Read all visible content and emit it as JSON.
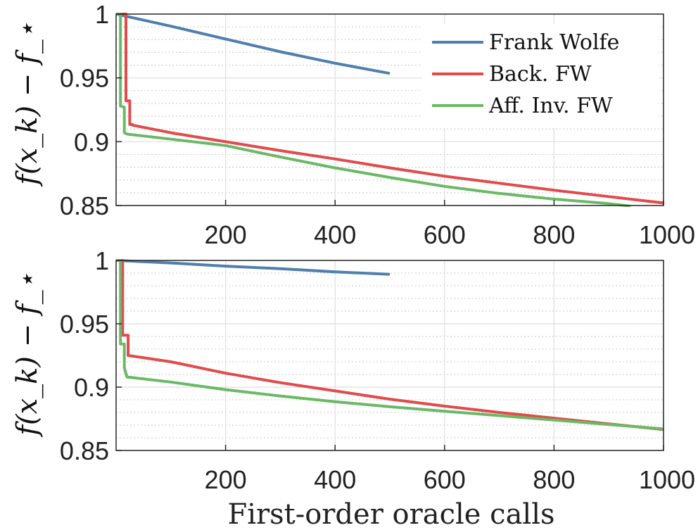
{
  "chart_data": [
    {
      "type": "line",
      "ylabel": "f(x_k) − f_⋆",
      "xlim": [
        0,
        1000
      ],
      "ylim": [
        0.85,
        1.0
      ],
      "xticks": [
        200,
        400,
        600,
        800,
        1000
      ],
      "yticks": [
        0.85,
        0.9,
        0.95,
        1.0
      ],
      "ytick_labels": [
        "0.85",
        "0.9",
        "0.95",
        "1"
      ],
      "grid": true,
      "legend": "top-right",
      "series": [
        {
          "name": "Frank Wolfe",
          "color": "#4e7fae",
          "x": [
            0,
            100,
            200,
            300,
            400,
            500
          ],
          "y": [
            1.0,
            0.9905,
            0.9805,
            0.9705,
            0.9615,
            0.9535
          ]
        },
        {
          "name": "Back. FW",
          "color": "#e14b4b",
          "x": [
            0,
            18,
            18,
            25,
            25,
            30,
            30,
            100,
            200,
            300,
            400,
            500,
            600,
            700,
            800,
            900,
            1000
          ],
          "y": [
            1.0,
            1.0,
            0.932,
            0.932,
            0.9135,
            0.9135,
            0.913,
            0.907,
            0.9,
            0.893,
            0.8865,
            0.8795,
            0.873,
            0.8675,
            0.862,
            0.857,
            0.852
          ]
        },
        {
          "name": "Aff. Inv. FW",
          "color": "#6ab966",
          "x": [
            0,
            8,
            8,
            15,
            15,
            20,
            100,
            200,
            300,
            400,
            500,
            600,
            700,
            800,
            900,
            940
          ],
          "y": [
            1.0,
            1.0,
            0.928,
            0.927,
            0.907,
            0.906,
            0.902,
            0.897,
            0.888,
            0.8795,
            0.872,
            0.865,
            0.8595,
            0.855,
            0.8515,
            0.8495
          ]
        }
      ]
    },
    {
      "type": "line",
      "xlabel": "First-order oracle calls",
      "ylabel": "f(x_k) − f_⋆",
      "xlim": [
        0,
        1000
      ],
      "ylim": [
        0.85,
        1.0
      ],
      "xticks": [
        200,
        400,
        600,
        800,
        1000
      ],
      "yticks": [
        0.85,
        0.9,
        0.95,
        1.0
      ],
      "ytick_labels": [
        "0.85",
        "0.9",
        "0.95",
        "1"
      ],
      "grid": true,
      "series": [
        {
          "name": "Frank Wolfe",
          "color": "#4e7fae",
          "x": [
            0,
            100,
            200,
            300,
            400,
            500
          ],
          "y": [
            1.0,
            0.998,
            0.9955,
            0.9935,
            0.991,
            0.989
          ]
        },
        {
          "name": "Back. FW",
          "color": "#e14b4b",
          "x": [
            0,
            12,
            12,
            22,
            22,
            100,
            200,
            300,
            400,
            500,
            600,
            700,
            800,
            900,
            1000
          ],
          "y": [
            1.0,
            1.0,
            0.941,
            0.941,
            0.925,
            0.92,
            0.911,
            0.9035,
            0.897,
            0.8905,
            0.885,
            0.88,
            0.8755,
            0.871,
            0.8665
          ]
        },
        {
          "name": "Aff. Inv. FW",
          "color": "#6ab966",
          "x": [
            0,
            8,
            8,
            15,
            15,
            20,
            100,
            200,
            300,
            400,
            500,
            600,
            700,
            800,
            900,
            1000
          ],
          "y": [
            1.0,
            1.0,
            0.934,
            0.934,
            0.915,
            0.908,
            0.904,
            0.898,
            0.893,
            0.8885,
            0.8845,
            0.881,
            0.8775,
            0.874,
            0.8705,
            0.867
          ]
        }
      ]
    }
  ]
}
